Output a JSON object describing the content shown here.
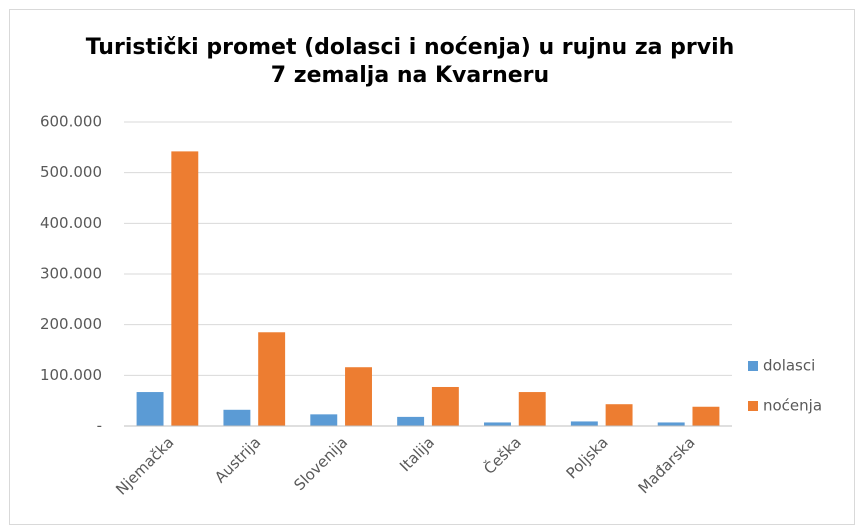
{
  "chart_data": {
    "type": "bar",
    "title": "Turistički promet (dolasci i noćenja) u rujnu za prvih 7 zemalja na Kvarneru",
    "categories": [
      "Njemačka",
      "Austrija",
      "Slovenija",
      "Italija",
      "Češka",
      "Poljska",
      "Mađarska"
    ],
    "series": [
      {
        "name": "dolasci",
        "color": "#5b9bd5",
        "values": [
          67000,
          32000,
          23000,
          18000,
          7000,
          9000,
          7000
        ]
      },
      {
        "name": "noćenja",
        "color": "#ed7d31",
        "values": [
          542000,
          185000,
          116000,
          77000,
          67000,
          43000,
          38000
        ]
      }
    ],
    "ylim": [
      0,
      600000
    ],
    "yticks": [
      {
        "value": 0,
        "label": "-"
      },
      {
        "value": 100000,
        "label": "100.000"
      },
      {
        "value": 200000,
        "label": "200.000"
      },
      {
        "value": 300000,
        "label": "300.000"
      },
      {
        "value": 400000,
        "label": "400.000"
      },
      {
        "value": 500000,
        "label": "500.000"
      },
      {
        "value": 600000,
        "label": "600.000"
      }
    ],
    "grid": true,
    "legend": "right"
  }
}
